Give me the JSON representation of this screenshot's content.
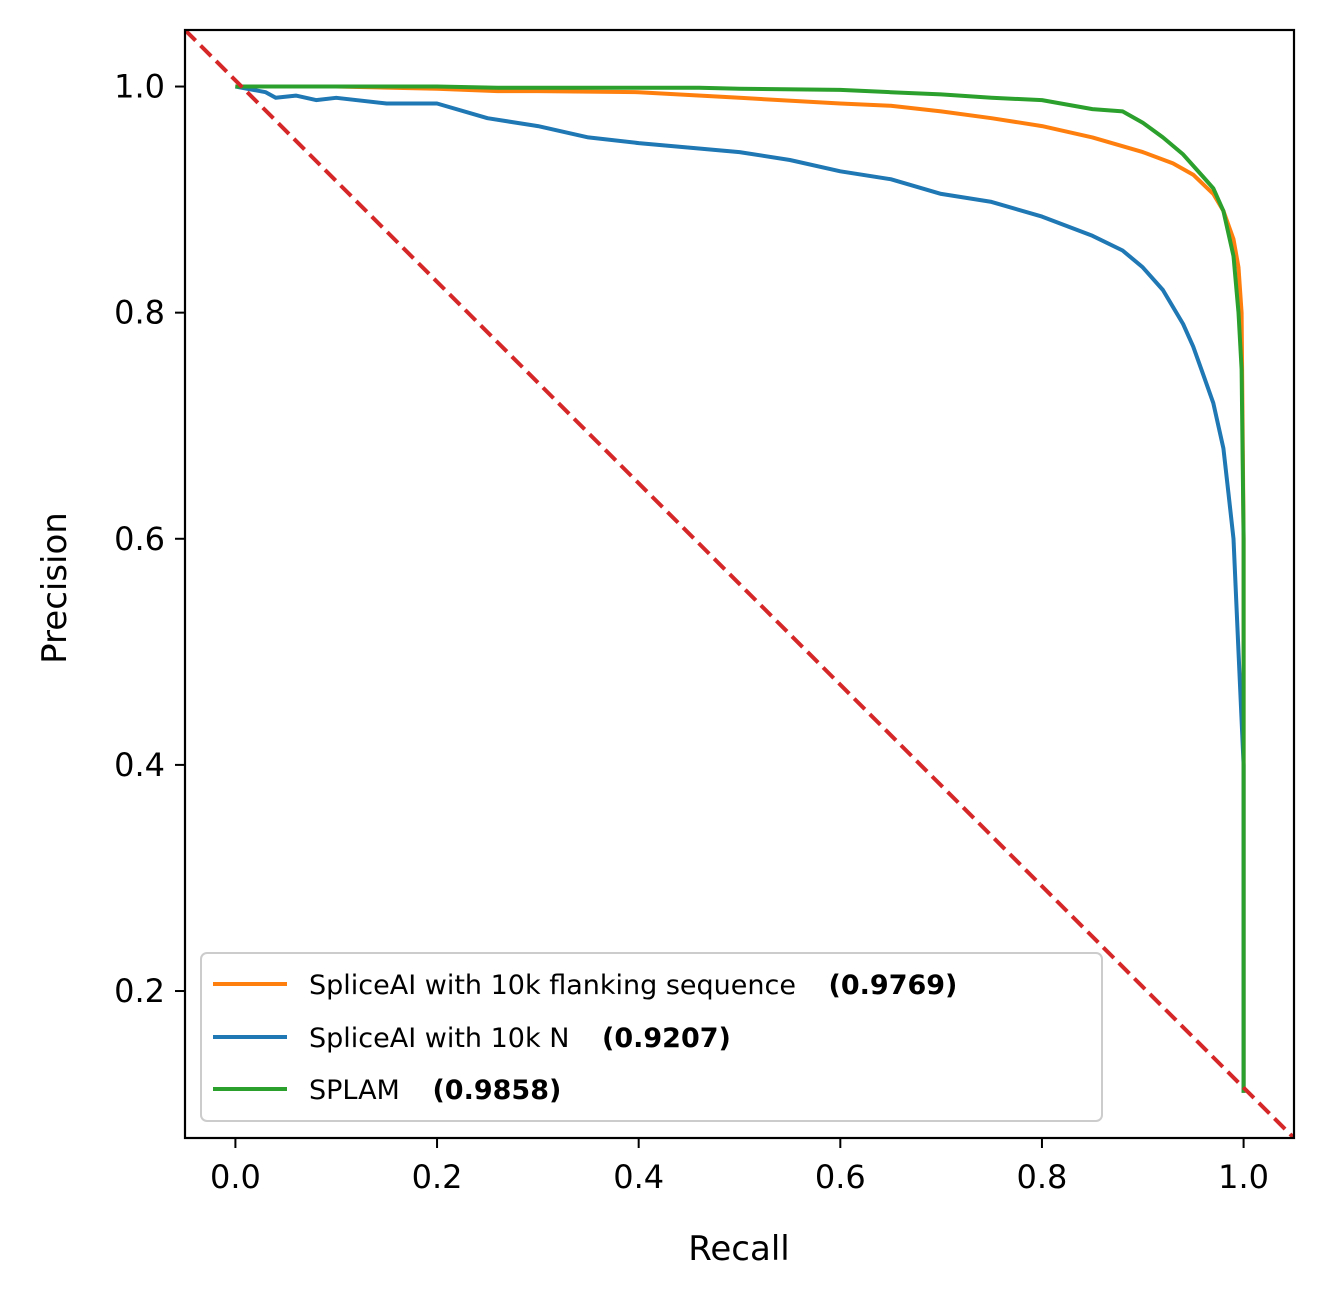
{
  "chart_data": {
    "type": "line",
    "title": "",
    "xlabel": "Recall",
    "ylabel": "Precision",
    "xlim": [
      -0.05,
      1.05
    ],
    "ylim": [
      0.07,
      1.05
    ],
    "xticks": [
      "0.0",
      "0.2",
      "0.4",
      "0.6",
      "0.8",
      "1.0"
    ],
    "yticks": [
      "0.2",
      "0.4",
      "0.6",
      "0.8",
      "1.0"
    ],
    "grid": false,
    "legend_position": "lower-left",
    "baseline": {
      "style": "dashed",
      "color": "#d62728",
      "x": [
        -0.05,
        1.05
      ],
      "y": [
        1.05,
        0.07
      ]
    },
    "series": [
      {
        "name": "SpliceAI with 10k flanking sequence",
        "score": "(0.9769)",
        "color": "#ff7f0e",
        "x": [
          0.0,
          0.1,
          0.2,
          0.26,
          0.3,
          0.4,
          0.5,
          0.6,
          0.65,
          0.7,
          0.75,
          0.8,
          0.85,
          0.9,
          0.93,
          0.95,
          0.97,
          0.98,
          0.99,
          0.995,
          0.998,
          1.0,
          1.0
        ],
        "y": [
          1.0,
          1.0,
          0.998,
          0.996,
          0.996,
          0.995,
          0.99,
          0.985,
          0.983,
          0.978,
          0.972,
          0.965,
          0.955,
          0.942,
          0.932,
          0.922,
          0.905,
          0.89,
          0.865,
          0.84,
          0.8,
          0.6,
          0.11
        ]
      },
      {
        "name": "SpliceAI with 10k N",
        "score": "(0.9207)",
        "color": "#1f77b4",
        "x": [
          0.0,
          0.03,
          0.04,
          0.06,
          0.08,
          0.1,
          0.15,
          0.2,
          0.25,
          0.3,
          0.35,
          0.4,
          0.45,
          0.5,
          0.55,
          0.6,
          0.65,
          0.7,
          0.75,
          0.8,
          0.85,
          0.88,
          0.9,
          0.92,
          0.94,
          0.95,
          0.96,
          0.97,
          0.98,
          0.985,
          0.99,
          0.995,
          1.0,
          1.0
        ],
        "y": [
          1.0,
          0.995,
          0.99,
          0.992,
          0.988,
          0.99,
          0.985,
          0.985,
          0.972,
          0.965,
          0.955,
          0.95,
          0.946,
          0.942,
          0.935,
          0.925,
          0.918,
          0.905,
          0.898,
          0.885,
          0.868,
          0.855,
          0.84,
          0.82,
          0.79,
          0.77,
          0.745,
          0.72,
          0.68,
          0.64,
          0.6,
          0.5,
          0.4,
          0.11
        ]
      },
      {
        "name": "SPLAM",
        "score": "(0.9858)",
        "color": "#2ca02c",
        "x": [
          0.0,
          0.1,
          0.2,
          0.26,
          0.3,
          0.4,
          0.46,
          0.5,
          0.6,
          0.65,
          0.7,
          0.75,
          0.8,
          0.85,
          0.88,
          0.9,
          0.92,
          0.94,
          0.96,
          0.97,
          0.98,
          0.99,
          0.995,
          0.998,
          1.0,
          1.0
        ],
        "y": [
          1.0,
          1.0,
          1.0,
          0.999,
          0.999,
          0.999,
          0.999,
          0.998,
          0.997,
          0.995,
          0.993,
          0.99,
          0.988,
          0.98,
          0.978,
          0.968,
          0.955,
          0.94,
          0.92,
          0.91,
          0.89,
          0.85,
          0.8,
          0.75,
          0.6,
          0.11
        ]
      }
    ]
  }
}
